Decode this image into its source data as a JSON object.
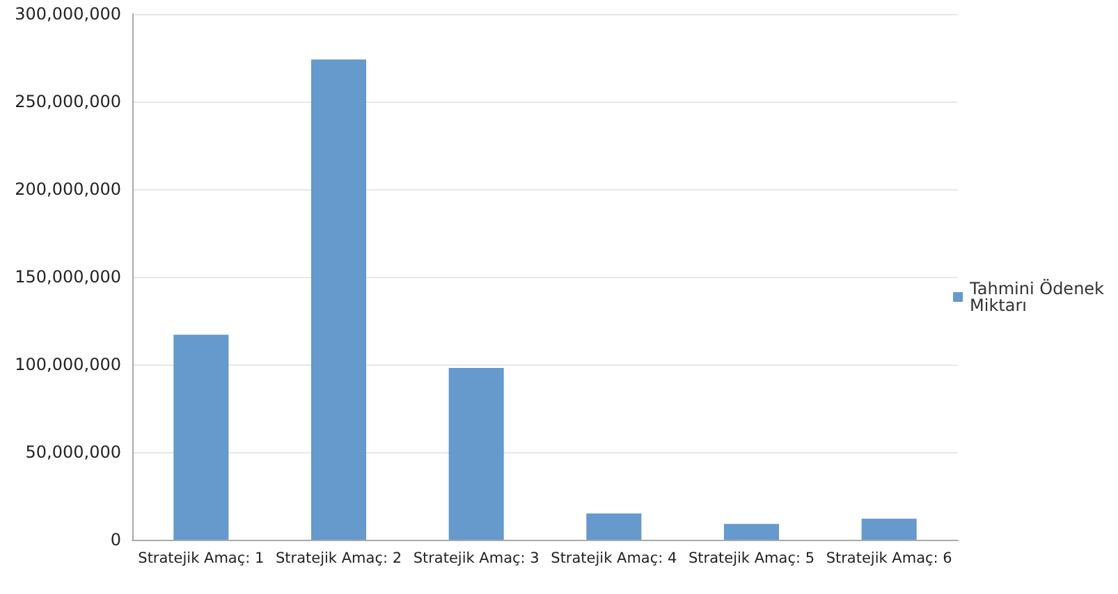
{
  "chart_data": {
    "type": "bar",
    "categories": [
      "Stratejik Amaç: 1",
      "Stratejik Amaç: 2",
      "Stratejik Amaç: 3",
      "Stratejik Amaç: 4",
      "Stratejik Amaç: 5",
      "Stratejik Amaç: 6"
    ],
    "series": [
      {
        "name": "Tahmini Ödenek Miktarı",
        "color": "#6699cc",
        "values": [
          117000000,
          274000000,
          98000000,
          15000000,
          9000000,
          12000000
        ]
      }
    ],
    "ylim": [
      0,
      300000000
    ],
    "yticks": [
      0,
      {
        "value": 50000000,
        "label": "50,000,000"
      },
      {
        "value": 100000000,
        "label": "100,000,000"
      },
      {
        "value": 150000000,
        "label": "150,000,000"
      },
      {
        "value": 200000000,
        "label": "200,000,000"
      },
      {
        "value": 250000000,
        "label": "250,000,000"
      },
      {
        "value": 300000000,
        "label": "300,000,000"
      }
    ],
    "grid": "y",
    "legend": "right"
  }
}
